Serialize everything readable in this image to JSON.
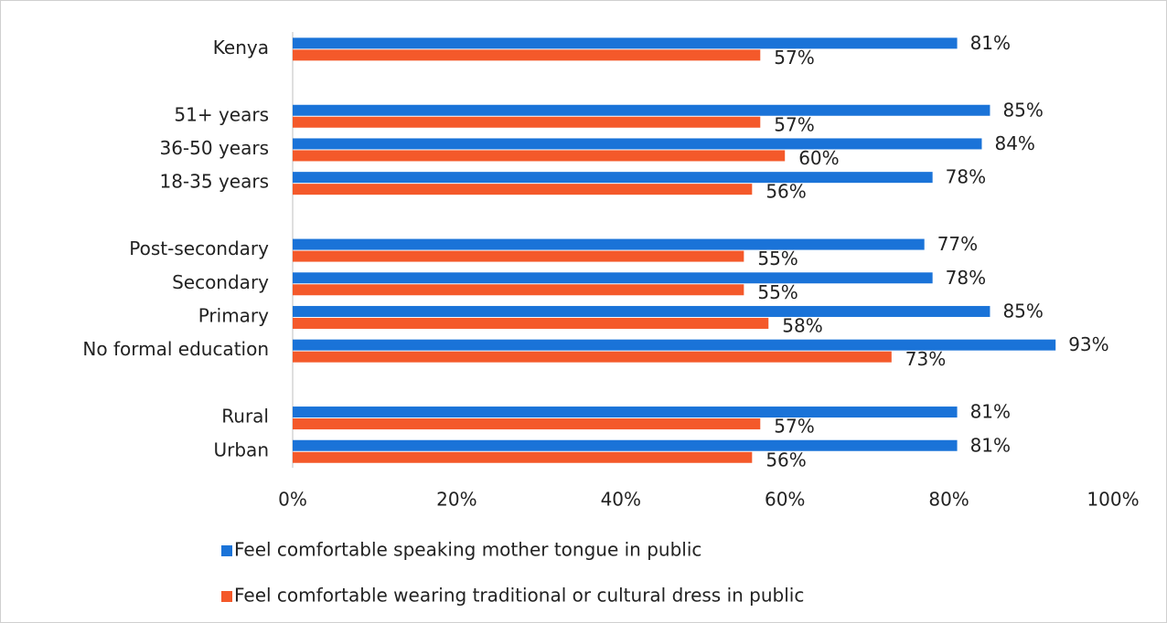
{
  "chart_data": {
    "type": "bar",
    "orientation": "horizontal",
    "categories": [
      "Kenya",
      null,
      "51+ years",
      "36-50 years",
      "18-35 years",
      null,
      "Post-secondary",
      "Secondary",
      "Primary",
      "No formal education",
      null,
      "Rural",
      "Urban"
    ],
    "series": [
      {
        "name": "Feel comfortable speaking mother tongue in public",
        "color": "#1a73d8",
        "values": [
          81,
          null,
          85,
          84,
          78,
          null,
          77,
          78,
          85,
          93,
          null,
          81,
          81
        ],
        "value_labels": [
          "81%",
          null,
          "85%",
          "84%",
          "78%",
          null,
          "77%",
          "78%",
          "85%",
          "93%",
          null,
          "81%",
          "81%"
        ]
      },
      {
        "name": "Feel comfortable wearing traditional or cultural dress in public",
        "color": "#f4592a",
        "values": [
          57,
          null,
          57,
          60,
          56,
          null,
          55,
          55,
          58,
          73,
          null,
          57,
          56
        ],
        "value_labels": [
          "57%",
          null,
          "57%",
          "60%",
          "56%",
          null,
          "55%",
          "55%",
          "58%",
          "73%",
          null,
          "57%",
          "56%"
        ]
      }
    ],
    "xlim": [
      0,
      100
    ],
    "xticks": [
      {
        "value": 0,
        "label": "0%"
      },
      {
        "value": 20,
        "label": "20%"
      },
      {
        "value": 40,
        "label": "40%"
      },
      {
        "value": 60,
        "label": "60%"
      },
      {
        "value": 80,
        "label": "80%"
      },
      {
        "value": 100,
        "label": "100%"
      }
    ],
    "grid": false,
    "legend": "bottom"
  }
}
